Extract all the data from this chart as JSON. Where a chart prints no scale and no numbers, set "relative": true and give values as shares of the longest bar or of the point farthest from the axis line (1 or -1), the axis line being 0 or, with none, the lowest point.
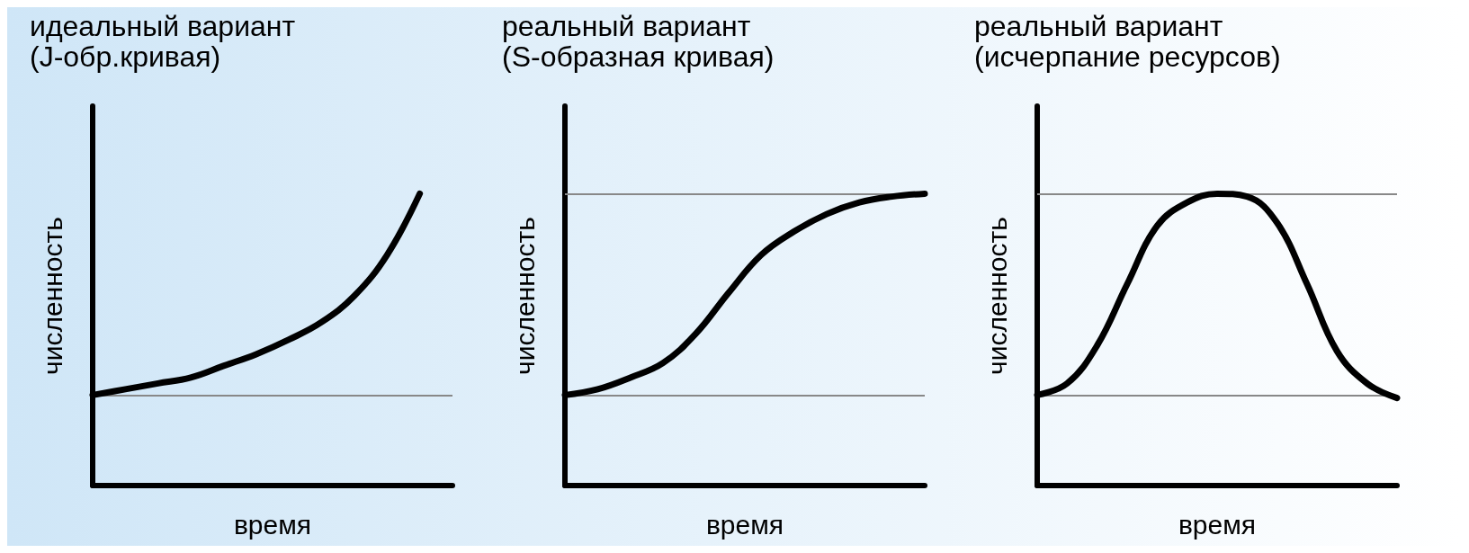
{
  "chart_data": [
    {
      "type": "line",
      "title": "идеальный вариант",
      "subtitle": "(J-обр.кривая)",
      "xlabel": "время",
      "ylabel": "численность",
      "relative": true,
      "categories": [
        null,
        null,
        null,
        null,
        null,
        null,
        null,
        null,
        null,
        null,
        null,
        null
      ],
      "series": [
        {
          "color": "#000000",
          "values": [
            0.31,
            0.33,
            0.35,
            0.37,
            0.41,
            0.45,
            0.5,
            0.56,
            0.65,
            0.79,
            1.0,
            null
          ]
        }
      ],
      "ref_lines": [
        {
          "axis": "y",
          "value": 0.31,
          "color": "#888888"
        }
      ],
      "grid": false,
      "marker": "none",
      "line_style": "solid"
    },
    {
      "type": "line",
      "title": "реальный вариант",
      "subtitle": "(S-образная кривая)",
      "xlabel": "время",
      "ylabel": "численность",
      "relative": true,
      "categories": [
        null,
        null,
        null,
        null,
        null,
        null,
        null,
        null,
        null,
        null,
        null,
        null
      ],
      "series": [
        {
          "color": "#000000",
          "values": [
            0.31,
            0.33,
            0.37,
            0.42,
            0.52,
            0.66,
            0.79,
            0.87,
            0.93,
            0.97,
            0.99,
            1.0
          ]
        }
      ],
      "ref_lines": [
        {
          "axis": "y",
          "value": 0.31,
          "color": "#888888"
        },
        {
          "axis": "y",
          "value": 1.0,
          "color": "#888888"
        }
      ],
      "grid": false,
      "marker": "none",
      "line_style": "solid"
    },
    {
      "type": "line",
      "title": "реальный вариант",
      "subtitle": "(исчерпание ресурсов)",
      "xlabel": "время",
      "ylabel": "численность",
      "relative": true,
      "categories": [
        null,
        null,
        null,
        null,
        null,
        null,
        null,
        null,
        null,
        null,
        null,
        null,
        null
      ],
      "series": [
        {
          "color": "#000000",
          "values": [
            0.31,
            0.35,
            0.48,
            0.69,
            0.89,
            0.97,
            1.0,
            0.99,
            0.9,
            0.69,
            0.46,
            0.35,
            0.3
          ]
        }
      ],
      "ref_lines": [
        {
          "axis": "y",
          "value": 0.31,
          "color": "#888888"
        },
        {
          "axis": "y",
          "value": 1.0,
          "color": "#888888"
        }
      ],
      "grid": false,
      "marker": "none",
      "line_style": "solid"
    }
  ]
}
